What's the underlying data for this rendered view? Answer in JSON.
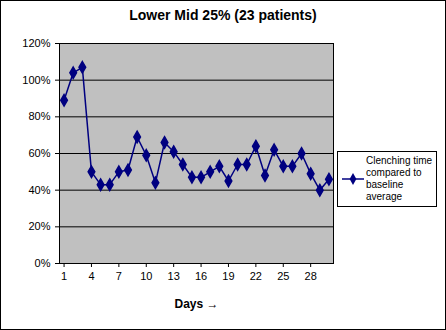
{
  "chart_data": {
    "type": "line",
    "title": "Lower Mid 25% (23 patients)",
    "x_label": "Days",
    "x": [
      1,
      2,
      3,
      4,
      5,
      6,
      7,
      8,
      9,
      10,
      11,
      12,
      13,
      14,
      15,
      16,
      17,
      18,
      19,
      20,
      21,
      22,
      23,
      24,
      25,
      26,
      27,
      28,
      29,
      30
    ],
    "series": [
      {
        "name": "Clenching time compared to baseline average",
        "color": "#000080",
        "marker": "diamond",
        "values": [
          89,
          104,
          107,
          50,
          43,
          43,
          50,
          51,
          69,
          59,
          44,
          66,
          61,
          54,
          47,
          47,
          50,
          53,
          45,
          54,
          54,
          64,
          48,
          62,
          53,
          53,
          60,
          49,
          40,
          46
        ]
      }
    ],
    "xlim": [
      0.5,
      30.5
    ],
    "xticks": [
      1,
      4,
      7,
      10,
      13,
      16,
      19,
      22,
      25,
      28
    ],
    "ylim": [
      0,
      120
    ],
    "yticks": [
      {
        "value": 0,
        "label": "0%"
      },
      {
        "value": 20,
        "label": "20%"
      },
      {
        "value": 40,
        "label": "40%"
      },
      {
        "value": 60,
        "label": "60%"
      },
      {
        "value": 80,
        "label": "80%"
      },
      {
        "value": 100,
        "label": "100%"
      },
      {
        "value": 120,
        "label": "120%"
      }
    ],
    "grid": true,
    "legend": "right"
  }
}
